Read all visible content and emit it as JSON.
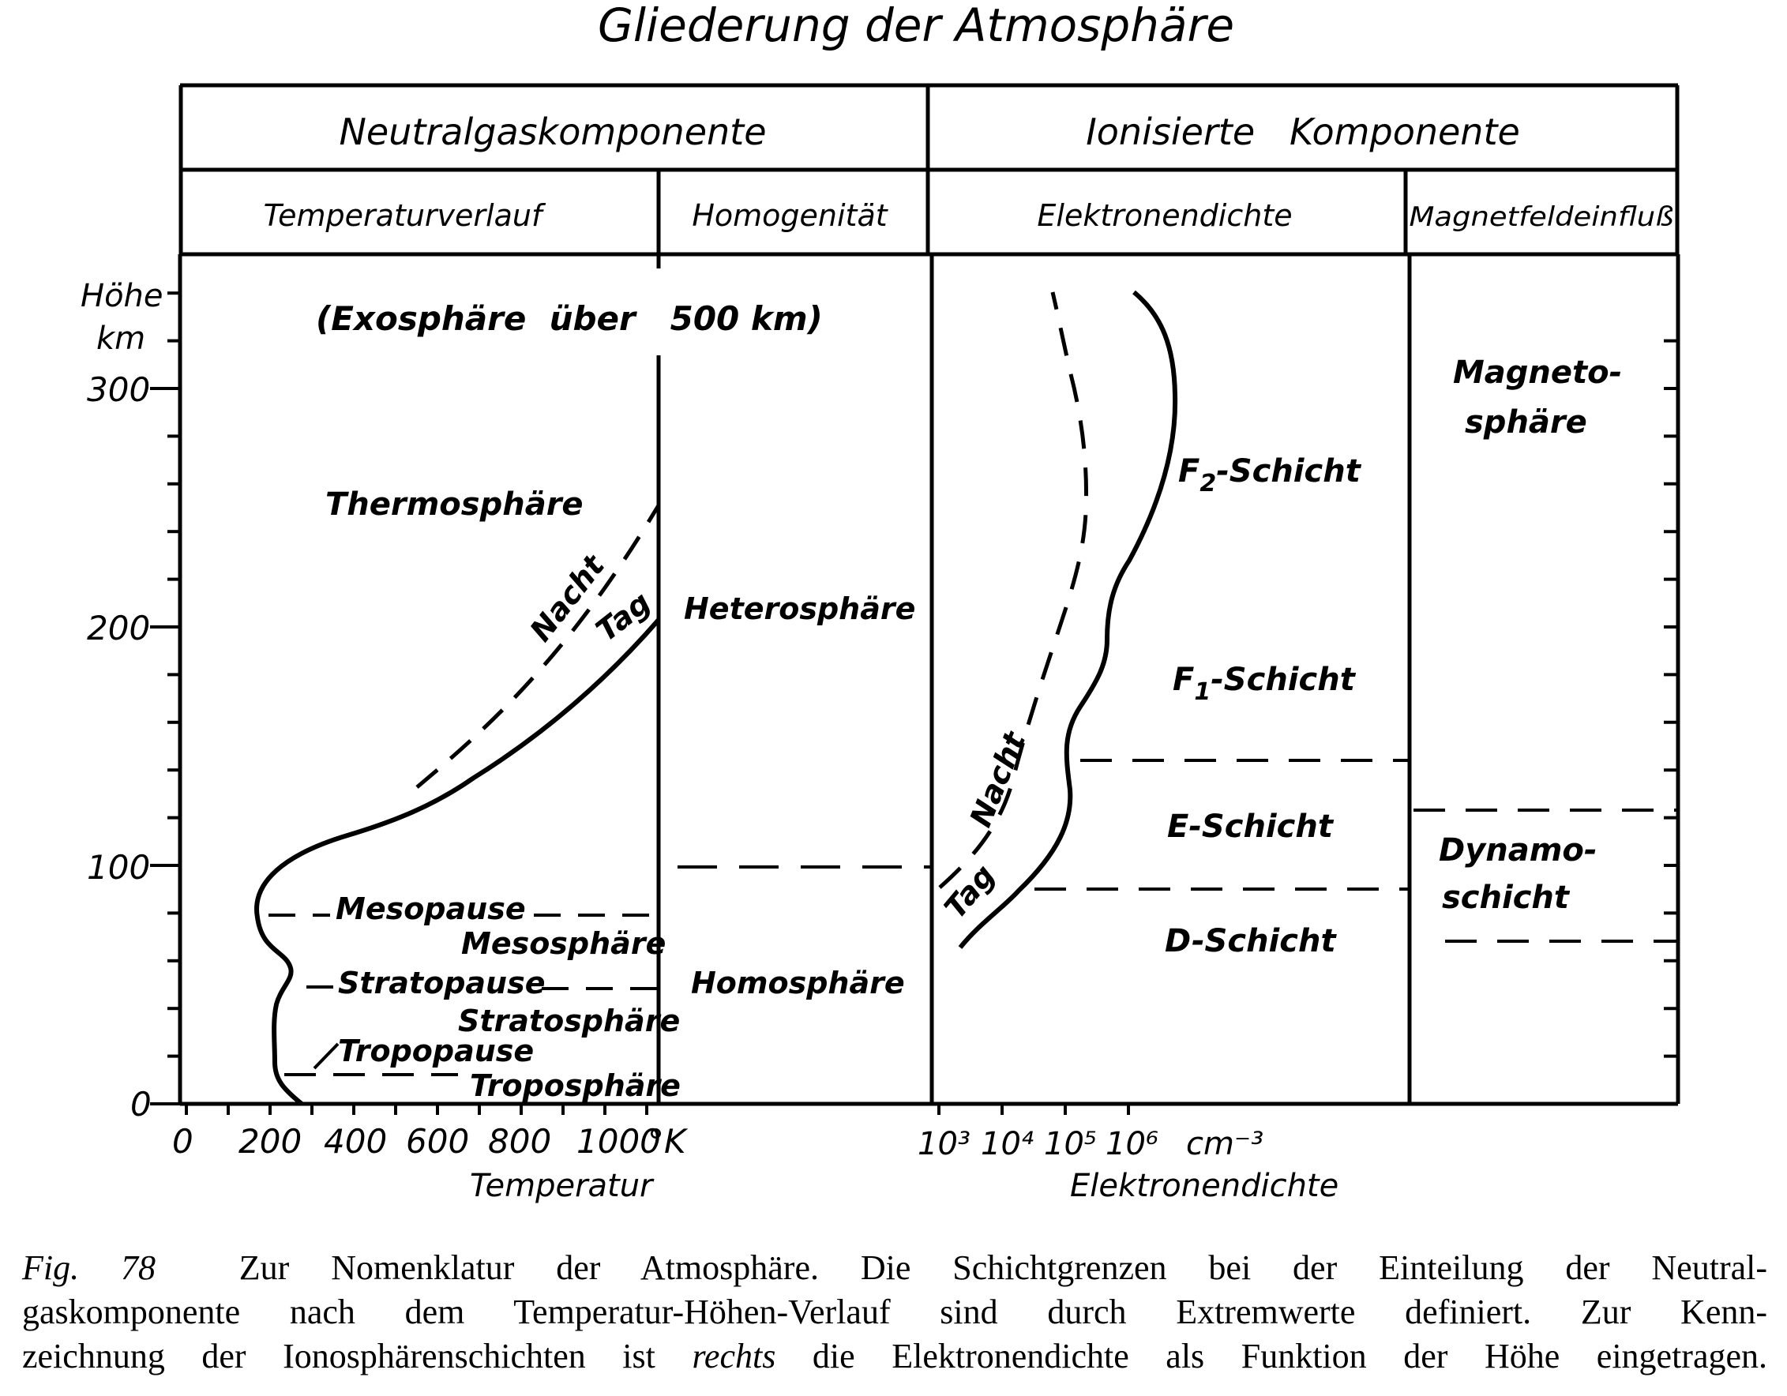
{
  "title": "Gliederung der Atmosphäre",
  "headers": {
    "neutral": "Neutralgaskomponente",
    "ionized": "Ionisierte   Komponente",
    "temperaturverlauf": "Temperaturverlauf",
    "homogenitaet": "Homogenität",
    "elektronendichte": "Elektronendichte",
    "magnetfeld": "Magnetfeldeinfluß"
  },
  "y_axis": {
    "label_line1": "Höhe",
    "label_line2": "km",
    "ticks": [
      "300",
      "200",
      "100",
      "0"
    ]
  },
  "temperature_axis": {
    "ticks": [
      "0",
      "200",
      "400",
      "600",
      "800",
      "1000"
    ],
    "unit": "°K",
    "label": "Temperatur"
  },
  "density_axis": {
    "ticks": [
      "10³",
      "10⁴",
      "10⁵",
      "10⁶"
    ],
    "unit": "cm⁻³",
    "label": "Elektronendichte"
  },
  "temperature_panel": {
    "exosphere": "(Exosphäre  über   500 km)",
    "thermosphere": "Thermosphäre",
    "nacht": "Nacht",
    "tag": "Tag",
    "mesopause": "Mesopause",
    "mesosphere": "Mesosphäre",
    "stratopause": "Stratopause",
    "stratosphere": "Stratosphäre",
    "tropopause": "Tropopause",
    "troposphere": "Troposphäre"
  },
  "homogeneity_panel": {
    "heterosphere": "Heterosphäre",
    "homosphere": "Homosphäre"
  },
  "density_panel": {
    "f2": "F",
    "f2_sub": "2",
    "f2_rest": "-Schicht",
    "f1": "F",
    "f1_sub": "1",
    "f1_rest": "-Schicht",
    "e": "E-Schicht",
    "d": "D-Schicht",
    "nacht": "Nacht",
    "tag": "Tag"
  },
  "magnetic_panel": {
    "magnetosphere_1": "Magneto-",
    "magnetosphere_2": "sphäre",
    "dynamo_1": "Dynamo-",
    "dynamo_2": "schicht"
  },
  "caption": {
    "fig": "Fig. 78",
    "line1": "Zur Nomenklatur der Atmosphäre. Die Schichtgrenzen bei der Einteilung der Neutral-",
    "line2": "gaskomponente nach dem Temperatur-Höhen-Verlauf sind durch Extremwerte definiert. Zur Kenn-",
    "line3_a": "zeichnung der Ionosphärenschichten ist",
    "line3_em": "rechts",
    "line3_b": "die Elektronendichte als Funktion der Höhe eingetragen."
  }
}
